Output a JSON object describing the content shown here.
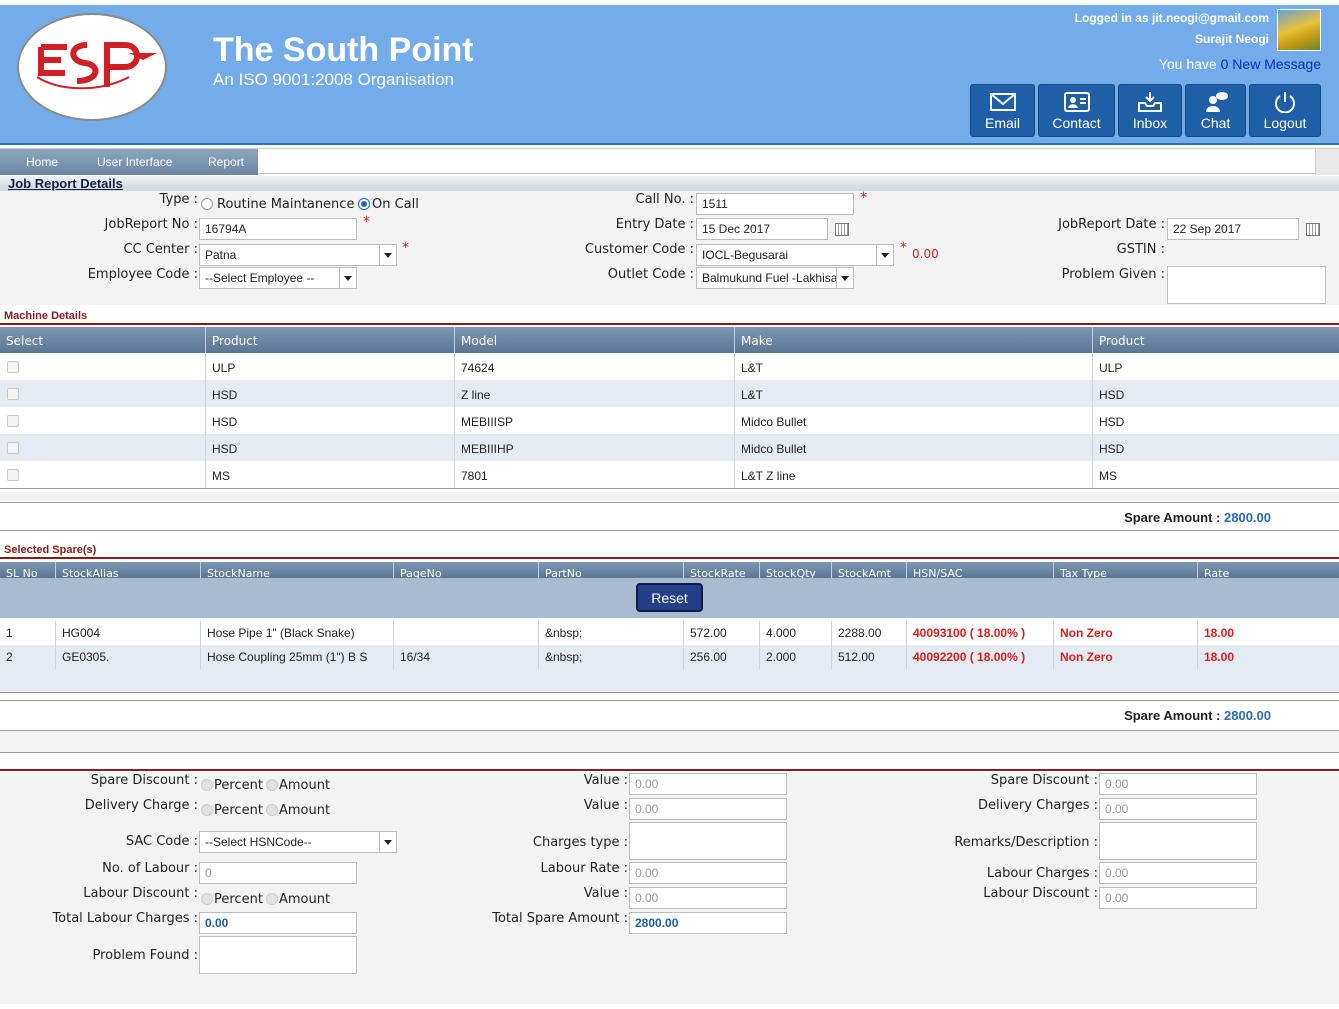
{
  "header": {
    "title": "The South Point",
    "subtitle": "An ISO 9001:2008 Organisation",
    "logged_in": "Logged in as jit.neogi@gmail.com",
    "user_name": "Surajit Neogi",
    "msg_prefix": "You have",
    "msg_count": "0",
    "msg_suffix": "New Message",
    "buttons": {
      "email": "Email",
      "contact": "Contact",
      "inbox": "Inbox",
      "chat": "Chat",
      "logout": "Logout"
    }
  },
  "nav": {
    "home": "Home",
    "ui": "User Interface",
    "report": "Report"
  },
  "job": {
    "section_title": "Job Report Details",
    "type_label": "Type :",
    "type_opt1": "Routine Maintanence",
    "type_opt2": "On Call",
    "jobreport_no_label": "JobReport No :",
    "jobreport_no": "16794A",
    "cc_center_label": "CC Center :",
    "cc_center": "Patna",
    "employee_code_label": "Employee Code :",
    "employee_code": "--Select Employee --",
    "call_no_label": "Call No. :",
    "call_no": "1511",
    "entry_date_label": "Entry Date :",
    "entry_date": "15 Dec 2017",
    "customer_code_label": "Customer Code :",
    "customer_code": "IOCL-Begusarai",
    "customer_amount": "0.00",
    "outlet_code_label": "Outlet Code :",
    "outlet_code": "Balmukund Fuel -Lakhisa",
    "jobreport_date_label": "JobReport Date :",
    "jobreport_date": "22 Sep 2017",
    "gstin_label": "GSTIN :",
    "problem_given_label": "Problem Given :"
  },
  "machine": {
    "title": "Machine Details",
    "headers": [
      "Select",
      "Product",
      "Model",
      "Make",
      "Product"
    ],
    "rows": [
      [
        "ULP",
        "74624",
        "L&T",
        "ULP"
      ],
      [
        "HSD",
        "Z line",
        "L&T",
        "HSD"
      ],
      [
        "HSD",
        "MEBIIISP",
        "Midco Bullet",
        "HSD"
      ],
      [
        "HSD",
        "MEBIIIHP",
        "Midco Bullet",
        "HSD"
      ],
      [
        "MS",
        "7801",
        "L&T Z line",
        "MS"
      ]
    ],
    "spare_amount_label": "Spare Amount :",
    "spare_amount": "2800.00"
  },
  "spares": {
    "title": "Selected Spare(s)",
    "headers": [
      "SL No",
      "StockAlias",
      "StockName",
      "PageNo",
      "PartNo",
      "StockRate",
      "StockQty",
      "StockAmt",
      "HSN/SAC",
      "Tax Type",
      "Rate"
    ],
    "reset_label": "Reset",
    "rows": [
      [
        "1",
        "HG004",
        "Hose Pipe 1\" (Black Snake)",
        "",
        "&nbsp;",
        "572.00",
        "4.000",
        "2288.00",
        "40093100 ( 18.00% )",
        "Non Zero",
        "18.00"
      ],
      [
        "2",
        "GE0305.",
        "Hose Coupling 25mm (1\") B S",
        "16/34",
        "&nbsp;",
        "256.00",
        "2.000",
        "512.00",
        "40092200 ( 18.00% )",
        "Non Zero",
        "18.00"
      ]
    ],
    "spare_amount_label": "Spare Amount :",
    "spare_amount": "2800.00"
  },
  "charges": {
    "spare_discount_label": "Spare Discount :",
    "delivery_charge_label": "Delivery Charge :",
    "percent": "Percent",
    "amount": "Amount",
    "sac_code_label": "SAC Code :",
    "sac_code": "--Select HSNCode--",
    "no_labour_label": "No. of Labour :",
    "no_labour": "0",
    "labour_discount_label": "Labour Discount :",
    "total_labour_label": "Total Labour Charges :",
    "total_labour": "0.00",
    "problem_found_label": "Problem Found :",
    "value_label": "Value :",
    "value1": "0.00",
    "value2": "0.00",
    "charges_type_label": "Charges type :",
    "labour_rate_label": "Labour Rate :",
    "labour_rate": "0.00",
    "value3": "0.00",
    "total_spare_label": "Total Spare Amount :",
    "total_spare": "2800.00",
    "r_spare_discount_label": "Spare Discount :",
    "r_spare_discount": "0.00",
    "r_delivery_label": "Delivery Charges :",
    "r_delivery": "0.00",
    "remarks_label": "Remarks/Description :",
    "labour_charges_label": "Labour Charges :",
    "labour_charges": "0.00",
    "r_labour_discount_label": "Labour Discount :",
    "r_labour_discount": "0.00"
  }
}
